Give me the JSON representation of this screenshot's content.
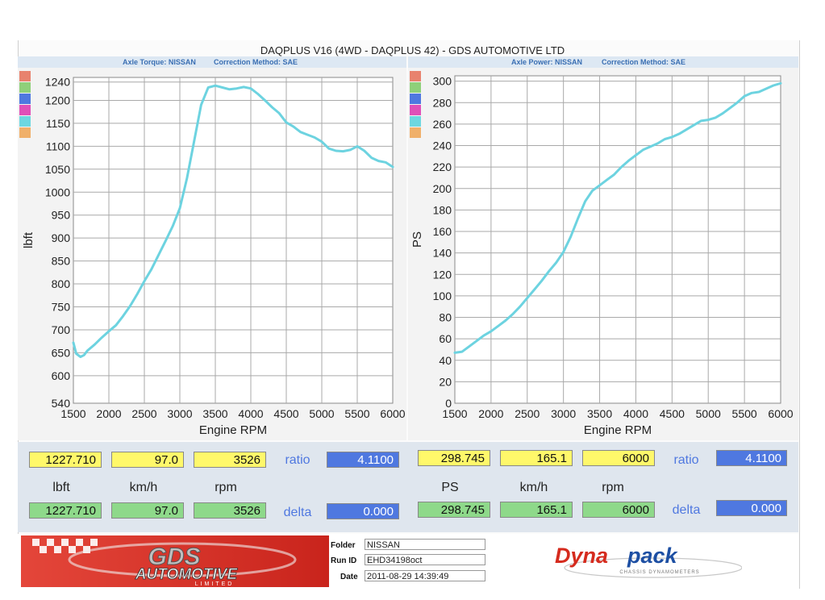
{
  "title": "DAQPLUS V16 (4WD - DAQPLUS 42) - GDS AUTOMOTIVE LTD",
  "left_header": {
    "name": "Axle Torque: NISSAN",
    "method": "Correction Method: SAE"
  },
  "right_header": {
    "name": "Axle Power: NISSAN",
    "method": "Correction Method: SAE"
  },
  "swatch_colors": [
    "#e8826e",
    "#8fd07a",
    "#4f78e0",
    "#e04fb8",
    "#6dd7e0",
    "#f0b06a"
  ],
  "chart_data": [
    {
      "type": "line",
      "xlabel": "Engine RPM",
      "ylabel": "lbft",
      "xlim": [
        1500,
        6000
      ],
      "ylim": [
        540,
        1250
      ],
      "x_ticks": [
        1500,
        2000,
        2500,
        3000,
        3500,
        4000,
        4500,
        5000,
        5500,
        6000
      ],
      "y_ticks": [
        540,
        600,
        650,
        700,
        750,
        800,
        850,
        900,
        950,
        1000,
        1050,
        1100,
        1150,
        1200,
        1240
      ],
      "grid": true,
      "line_color": "#6dd3e0",
      "series": [
        {
          "x": [
            1500,
            1540,
            1600,
            1650,
            1700,
            1800,
            1900,
            2000,
            2100,
            2200,
            2300,
            2400,
            2500,
            2600,
            2700,
            2800,
            2900,
            3000,
            3100,
            3200,
            3300,
            3400,
            3500,
            3600,
            3700,
            3800,
            3900,
            4000,
            4100,
            4200,
            4300,
            4400,
            4500,
            4600,
            4700,
            4800,
            4900,
            5000,
            5100,
            5200,
            5300,
            5400,
            5500,
            5600,
            5700,
            5800,
            5900,
            6000
          ],
          "y": [
            672,
            648,
            641,
            645,
            655,
            668,
            683,
            697,
            710,
            730,
            752,
            778,
            806,
            832,
            863,
            894,
            926,
            965,
            1030,
            1110,
            1190,
            1228,
            1232,
            1228,
            1224,
            1226,
            1229,
            1226,
            1214,
            1200,
            1185,
            1172,
            1152,
            1143,
            1131,
            1125,
            1119,
            1110,
            1095,
            1090,
            1089,
            1092,
            1100,
            1090,
            1075,
            1068,
            1065,
            1055
          ]
        }
      ]
    },
    {
      "type": "line",
      "xlabel": "Engine RPM",
      "ylabel": "PS",
      "xlim": [
        1500,
        6000
      ],
      "ylim": [
        0,
        305
      ],
      "x_ticks": [
        1500,
        2000,
        2500,
        3000,
        3500,
        4000,
        4500,
        5000,
        5500,
        6000
      ],
      "y_ticks": [
        0,
        20,
        40,
        60,
        80,
        100,
        120,
        140,
        160,
        180,
        200,
        220,
        240,
        260,
        280,
        300
      ],
      "grid": true,
      "line_color": "#6dd3e0",
      "series": [
        {
          "x": [
            1500,
            1600,
            1700,
            1800,
            1900,
            2000,
            2100,
            2200,
            2300,
            2400,
            2500,
            2600,
            2700,
            2800,
            2900,
            3000,
            3100,
            3200,
            3300,
            3400,
            3500,
            3600,
            3700,
            3800,
            3900,
            4000,
            4100,
            4200,
            4300,
            4400,
            4500,
            4600,
            4700,
            4800,
            4900,
            5000,
            5100,
            5200,
            5300,
            5400,
            5500,
            5600,
            5700,
            5800,
            5900,
            6000
          ],
          "y": [
            47,
            48,
            53,
            58,
            63,
            67,
            72,
            77,
            83,
            90,
            98,
            106,
            114,
            123,
            131,
            141,
            155,
            172,
            188,
            198,
            203,
            208,
            213,
            220,
            226,
            231,
            236,
            239,
            242,
            246,
            248,
            251,
            255,
            259,
            263,
            264,
            266,
            270,
            275,
            280,
            286,
            289,
            290,
            293,
            296,
            298
          ]
        }
      ]
    }
  ],
  "left_readout": {
    "top": [
      "1227.710",
      "97.0",
      "3526"
    ],
    "units": [
      "lbft",
      "km/h",
      "rpm"
    ],
    "bottom": [
      "1227.710",
      "97.0",
      "3526"
    ],
    "ratio_label": "ratio",
    "ratio_value": "4.1100",
    "delta_label": "delta",
    "delta_value": "0.000"
  },
  "right_readout": {
    "top": [
      "298.745",
      "165.1",
      "6000"
    ],
    "units": [
      "PS",
      "km/h",
      "rpm"
    ],
    "bottom": [
      "298.745",
      "165.1",
      "6000"
    ],
    "ratio_label": "ratio",
    "ratio_value": "4.1100",
    "delta_label": "delta",
    "delta_value": "0.000"
  },
  "footer": {
    "logo_text": "GDS",
    "logo_sub": "AUTOMOTIVE",
    "logo_small": "LIMITED",
    "folder_label": "Folder",
    "folder_value": "NISSAN",
    "runid_label": "Run ID",
    "runid_value": "EHD34198oct",
    "date_label": "Date",
    "date_value": "2011-08-29 14:39:49",
    "brand_a": "Dyna",
    "brand_b": "pack",
    "brand_sub": "CHASSIS DYNAMOMETERS"
  }
}
